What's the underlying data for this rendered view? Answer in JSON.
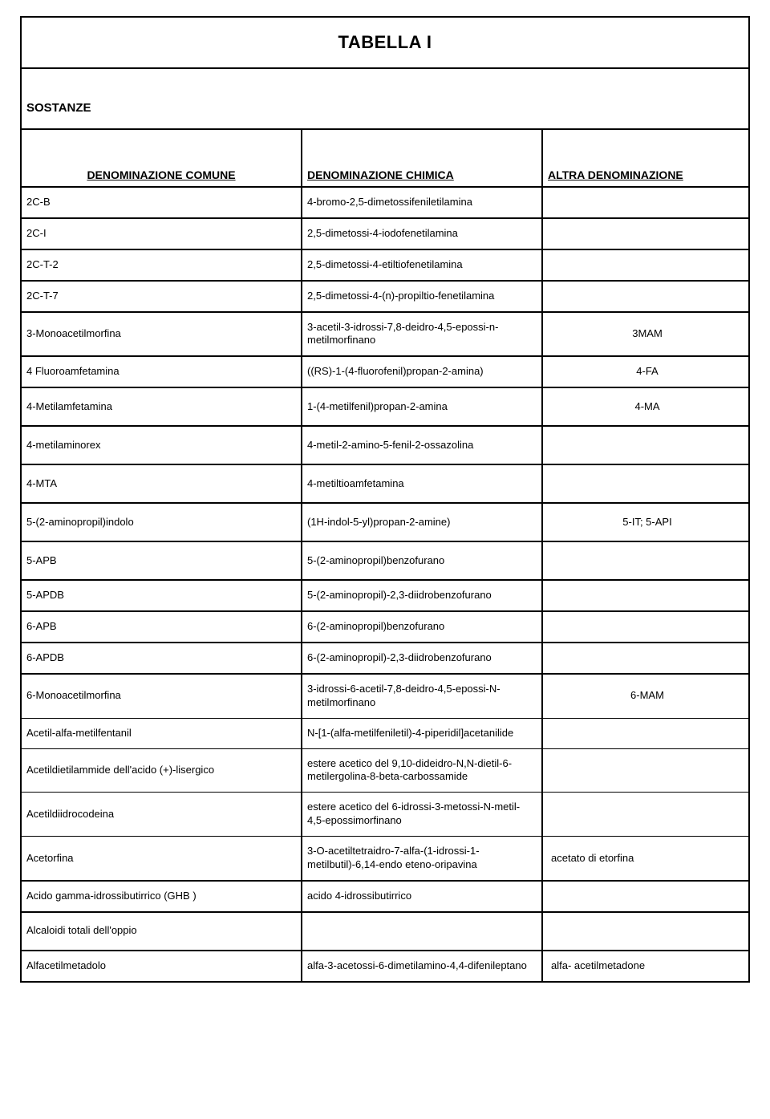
{
  "title": "TABELLA I",
  "section_label": "SOSTANZE",
  "columns": {
    "c1": "DENOMINAZIONE COMUNE",
    "c2": "DENOMINAZIONE CHIMICA",
    "c3": "ALTRA DENOMINAZIONE"
  },
  "rows": [
    {
      "c1": "2C-B",
      "c2": "4-bromo-2,5-dimetossifeniletilamina",
      "c3": ""
    },
    {
      "c1": "2C-I",
      "c2": "2,5-dimetossi-4-iodofenetilamina",
      "c3": ""
    },
    {
      "c1": "2C-T-2",
      "c2": "2,5-dimetossi-4-etiltiofenetilamina",
      "c3": ""
    },
    {
      "c1": "2C-T-7",
      "c2": "2,5-dimetossi-4-(n)-propiltio-fenetilamina",
      "c3": ""
    },
    {
      "c1": "3-Monoacetilmorfina",
      "c2": "3-acetil-3-idrossi-7,8-deidro-4,5-epossi-n-metilmorfinano",
      "c3": "3MAM",
      "c3_center": true
    },
    {
      "c1": "4 Fluoroamfetamina",
      "c2": "((RS)-1-(4-fluorofenil)propan-2-amina)",
      "c3": "4-FA",
      "c3_center": true
    },
    {
      "c1": "4-Metilamfetamina",
      "c2": "1-(4-metilfenil)propan-2-amina",
      "c3": "4-MA",
      "c3_center": true
    },
    {
      "c1": "4-metilaminorex",
      "c2": "4-metil-2-amino-5-fenil-2-ossazolina",
      "c3": ""
    },
    {
      "c1": "4-MTA",
      "c2": "4-metiltioamfetamina",
      "c3": ""
    },
    {
      "c1": "5-(2-aminopropil)indolo",
      "c2": "(1H-indol-5-yl)propan-2-amine)",
      "c3": "5-IT;  5-API",
      "c3_center": true
    },
    {
      "c1": "5-APB",
      "c2": "5-(2-aminopropil)benzofurano",
      "c3": ""
    },
    {
      "c1": "5-APDB",
      "c2": "5-(2-aminopropil)-2,3-diidrobenzofurano",
      "c3": ""
    },
    {
      "c1": "6-APB",
      "c2": "6-(2-aminopropil)benzofurano",
      "c3": ""
    },
    {
      "c1": "6-APDB",
      "c2": "6-(2-aminopropil)-2,3-diidrobenzofurano",
      "c3": ""
    },
    {
      "c1": "6-Monoacetilmorfina",
      "c2": "3-idrossi-6-acetil-7,8-deidro-4,5-epossi-N-metilmorfinano",
      "c3": "6-MAM",
      "c3_center": true,
      "thin": true
    },
    {
      "c1": "Acetil-alfa-metilfentanil",
      "c2": "N-[1-(alfa-metilfeniletil)-4-piperidil]acetanilide",
      "c3": "",
      "thin": true
    },
    {
      "c1": "Acetildietilammide dell'acido (+)-lisergico",
      "c2": "estere acetico del 9,10-dideidro-N,N-dietil-6-metilergolina-8-beta-carbossamide",
      "c3": "",
      "thin": true
    },
    {
      "c1": "Acetildiidrocodeina",
      "c2": "estere acetico del 6-idrossi-3-metossi-N-metil-4,5-epossimorfinano",
      "c3": "",
      "thin": true
    },
    {
      "c1": "Acetorfina",
      "c2": "3-O-acetiltetraidro-7-alfa-(1-idrossi-1-metilbutil)-6,14-endo eteno-oripavina",
      "c3": "acetato di etorfina"
    },
    {
      "c1": "Acido gamma-idrossibutirrico (GHB )",
      "c2": "acido 4-idrossibutirrico",
      "c3": ""
    },
    {
      "c1": "Alcaloidi totali dell'oppio",
      "c2": "",
      "c3": ""
    },
    {
      "c1": "Alfacetilmetadolo",
      "c2": "alfa-3-acetossi-6-dimetilamino-4,4-difenileptano",
      "c3": "alfa- acetilmetadone"
    }
  ]
}
